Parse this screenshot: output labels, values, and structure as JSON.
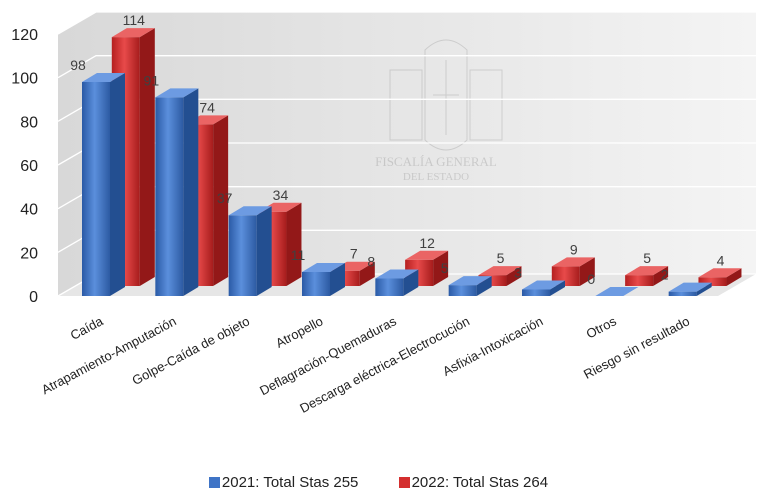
{
  "chart_data": {
    "type": "bar",
    "title": "",
    "xlabel": "",
    "ylabel": "",
    "ylim": [
      0,
      120
    ],
    "yticks": [
      0,
      20,
      40,
      60,
      80,
      100,
      120
    ],
    "grid": true,
    "legend_position": "bottom",
    "categories": [
      "Caída",
      "Atrapamiento-Amputación",
      "Golpe-Caída de objeto",
      "Atropello",
      "Deflagración-Quemaduras",
      "Descarga eléctrica-Electrocución",
      "Asfixia-Intoxicación",
      "Otros",
      "Riesgo sin resultado"
    ],
    "series": [
      {
        "name": "2021: Total Stas 255",
        "color": "#3f74c6",
        "values": [
          98,
          91,
          37,
          11,
          8,
          5,
          3,
          0,
          2
        ]
      },
      {
        "name": "2022: Total Stas 264",
        "color": "#d42f2f",
        "values": [
          114,
          74,
          34,
          7,
          12,
          5,
          9,
          5,
          4
        ]
      }
    ],
    "watermark": {
      "line1": "FISCALÍA GENERAL",
      "line2": "DEL ESTADO"
    }
  }
}
